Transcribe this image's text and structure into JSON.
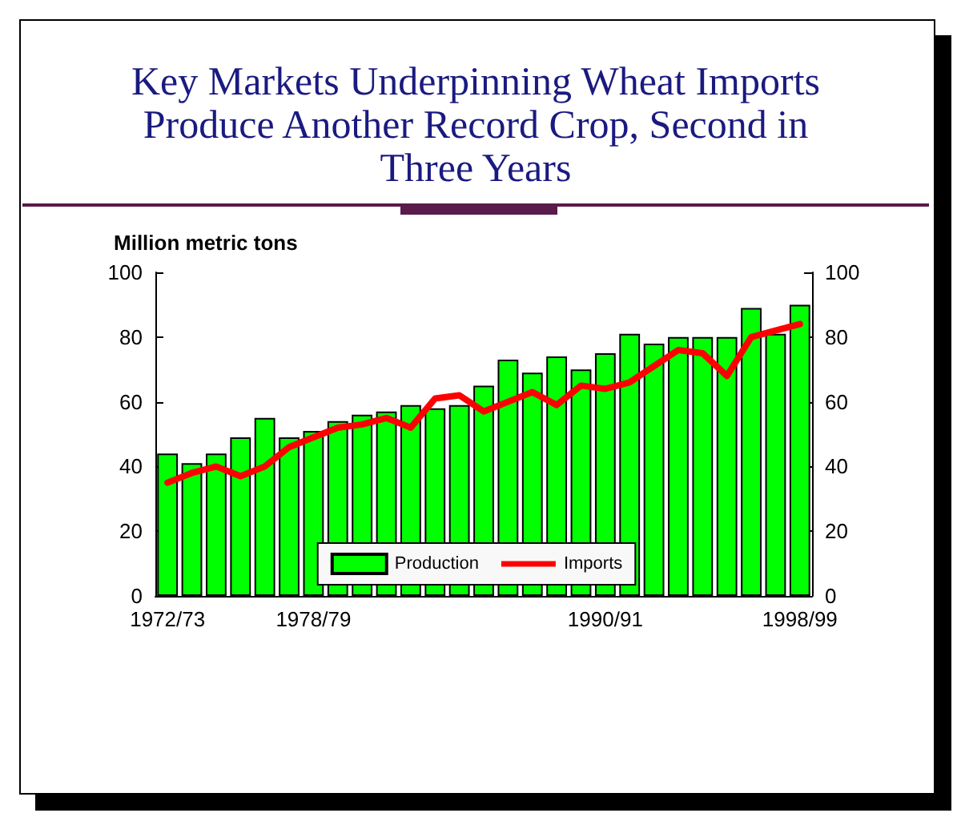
{
  "chart_data": {
    "type": "bar",
    "title": "Key Markets Underpinning Wheat Imports Produce Another Record Crop, Second in Three Years",
    "ylabel": "Million metric tons",
    "categories": [
      "1972/73",
      null,
      null,
      null,
      null,
      null,
      "1978/79",
      null,
      null,
      null,
      null,
      null,
      null,
      null,
      null,
      null,
      null,
      null,
      "1990/91",
      null,
      null,
      null,
      null,
      null,
      null,
      null,
      "1998/99"
    ],
    "series": [
      {
        "name": "Production",
        "color": "#00ff00",
        "values": [
          44,
          41,
          44,
          49,
          55,
          49,
          51,
          54,
          56,
          57,
          59,
          58,
          59,
          65,
          73,
          69,
          74,
          70,
          75,
          81,
          78,
          80,
          80,
          80,
          89,
          81,
          90
        ]
      },
      {
        "name": "Imports",
        "type": "line",
        "color": "#ff0000",
        "values": [
          35,
          38,
          40,
          37,
          40,
          46,
          49,
          52,
          53,
          55,
          52,
          61,
          62,
          57,
          60,
          63,
          59,
          65,
          64,
          66,
          71,
          76,
          75,
          68,
          80,
          82,
          84
        ]
      }
    ],
    "ylim": [
      0,
      100
    ],
    "yticks": [
      0,
      20,
      40,
      60,
      80,
      100
    ],
    "y2lim": [
      0,
      100
    ],
    "y2ticks": [
      0,
      20,
      40,
      60,
      80,
      100
    ],
    "grid": false,
    "legend": "bottom",
    "marker": "none",
    "line_style": "solid"
  }
}
